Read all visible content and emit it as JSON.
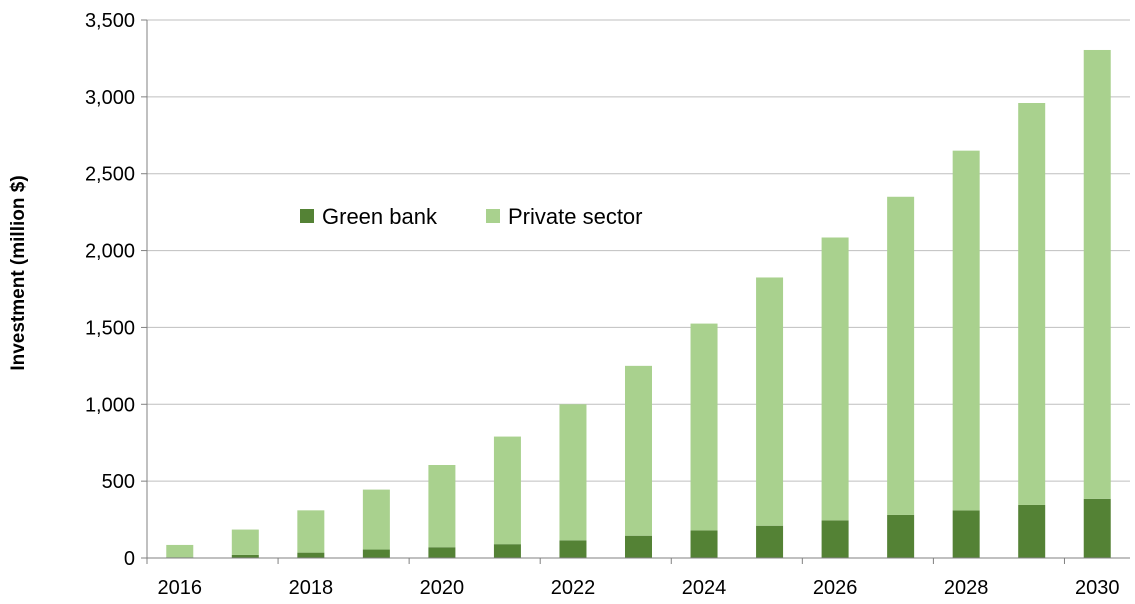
{
  "chart_data": {
    "type": "bar",
    "stacked": true,
    "title": "",
    "xlabel": "",
    "ylabel": "Investment (million $)",
    "ylim": [
      0,
      3500
    ],
    "yticks": [
      0,
      500,
      1000,
      1500,
      2000,
      2500,
      3000,
      3500
    ],
    "ytick_labels": [
      "0",
      "500",
      "1,000",
      "1,500",
      "2,000",
      "2,500",
      "3,000",
      "3,500"
    ],
    "categories": [
      "2016",
      "2017",
      "2018",
      "2019",
      "2020",
      "2021",
      "2022",
      "2023",
      "2024",
      "2025",
      "2026",
      "2027",
      "2028",
      "2029",
      "2030"
    ],
    "xtick_labels": [
      "2016",
      "2018",
      "2020",
      "2022",
      "2024",
      "2026",
      "2028",
      "2030"
    ],
    "grid": "horizontal",
    "legend_position": "upper-left, inside plot",
    "series": [
      {
        "name": "Green bank",
        "color": "#548235",
        "values": [
          5,
          20,
          35,
          55,
          70,
          90,
          115,
          145,
          180,
          210,
          245,
          280,
          310,
          345,
          385
        ]
      },
      {
        "name": "Private sector",
        "color": "#a9d18e",
        "values": [
          80,
          165,
          275,
          390,
          535,
          700,
          885,
          1105,
          1345,
          1615,
          1840,
          2070,
          2340,
          2615,
          2920
        ]
      }
    ]
  }
}
